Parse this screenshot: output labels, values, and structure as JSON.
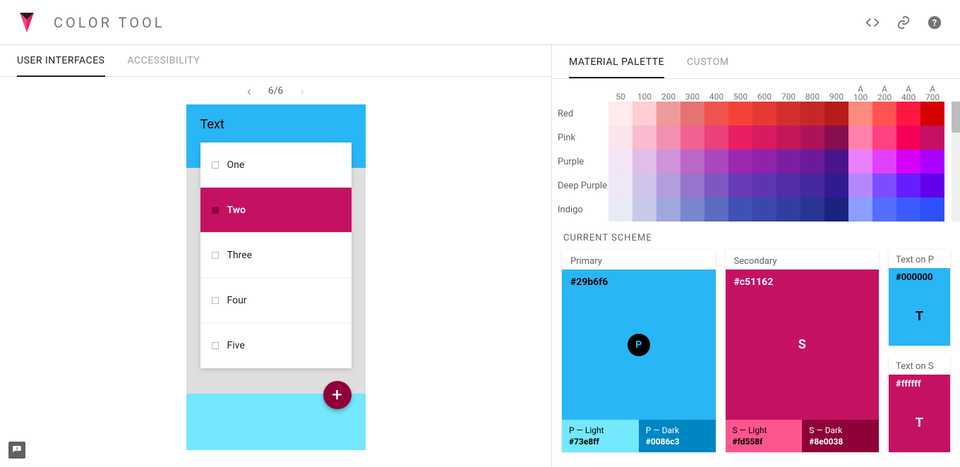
{
  "app": {
    "title": "COLOR TOOL"
  },
  "logo": {
    "top_color": "#212121",
    "left_color": "#ff4081",
    "right_color": "#e91e63"
  },
  "left": {
    "tabs": [
      {
        "label": "USER INTERFACES",
        "active": true
      },
      {
        "label": "ACCESSIBILITY",
        "active": false
      }
    ],
    "pager": {
      "text": "6/6",
      "prev_enabled": true,
      "next_enabled": false
    },
    "mock": {
      "primary_color": "#29b6f6",
      "primary_light": "#73e8ff",
      "secondary_color": "#c51162",
      "secondary_dark": "#8e0038",
      "frame_bg": "#dedede",
      "header_title": "Text",
      "items": [
        {
          "label": "One",
          "selected": false
        },
        {
          "label": "Two",
          "selected": true
        },
        {
          "label": "Three",
          "selected": false
        },
        {
          "label": "Four",
          "selected": false
        },
        {
          "label": "Five",
          "selected": false
        }
      ],
      "fab_glyph": "+"
    }
  },
  "right": {
    "tabs": [
      {
        "label": "MATERIAL PALETTE",
        "active": true
      },
      {
        "label": "CUSTOM",
        "active": false
      }
    ],
    "shade_labels": [
      "50",
      "100",
      "200",
      "300",
      "400",
      "500",
      "600",
      "700",
      "800",
      "900",
      "A 100",
      "A 200",
      "A 400",
      "A 700"
    ],
    "palette": [
      {
        "name": "Red",
        "swatches": [
          "#ffebee",
          "#ffcdd2",
          "#ef9a9a",
          "#e57373",
          "#ef5350",
          "#f44336",
          "#e53935",
          "#d32f2f",
          "#c62828",
          "#b71c1c",
          "#ff8a80",
          "#ff5252",
          "#ff1744",
          "#d50000"
        ]
      },
      {
        "name": "Pink",
        "swatches": [
          "#fce4ec",
          "#f8bbd0",
          "#f48fb1",
          "#f06292",
          "#ec407a",
          "#e91e63",
          "#d81b60",
          "#c2185b",
          "#ad1457",
          "#880e4f",
          "#ff80ab",
          "#ff4081",
          "#f50057",
          "#c51162"
        ]
      },
      {
        "name": "Purple",
        "swatches": [
          "#f3e5f5",
          "#e1bee7",
          "#ce93d8",
          "#ba68c8",
          "#ab47bc",
          "#9c27b0",
          "#8e24aa",
          "#7b1fa2",
          "#6a1b9a",
          "#4a148c",
          "#ea80fc",
          "#e040fb",
          "#d500f9",
          "#aa00ff"
        ]
      },
      {
        "name": "Deep Purple",
        "swatches": [
          "#ede7f6",
          "#d1c4e9",
          "#b39ddb",
          "#9575cd",
          "#7e57c2",
          "#673ab7",
          "#5e35b1",
          "#512da8",
          "#4527a0",
          "#311b92",
          "#b388ff",
          "#7c4dff",
          "#651fff",
          "#6200ea"
        ]
      },
      {
        "name": "Indigo",
        "swatches": [
          "#e8eaf6",
          "#c5cae9",
          "#9fa8da",
          "#7986cb",
          "#5c6bc0",
          "#3f51b5",
          "#3949ab",
          "#303f9f",
          "#283593",
          "#1a237e",
          "#8c9eff",
          "#536dfe",
          "#3d5afe",
          "#304ffe"
        ]
      }
    ],
    "scheme_title": "CURRENT SCHEME",
    "primary": {
      "label": "Primary",
      "letter": "P",
      "hex": "#29b6f6",
      "light_label": "P — Light",
      "light_hex": "#73e8ff",
      "dark_label": "P — Dark",
      "dark_hex": "#0086c3",
      "text_on_hex": "#000000"
    },
    "secondary": {
      "label": "Secondary",
      "letter": "S",
      "hex": "#c51162",
      "light_label": "S — Light",
      "light_hex": "#fd558f",
      "dark_label": "S — Dark",
      "dark_hex": "#8e0038",
      "text_on_hex": "#ffffff"
    },
    "text_on_p": {
      "label": "Text on P",
      "hex": "#000000",
      "letter": "T"
    },
    "text_on_s": {
      "label": "Text on S",
      "hex": "#ffffff",
      "letter": "T"
    }
  }
}
